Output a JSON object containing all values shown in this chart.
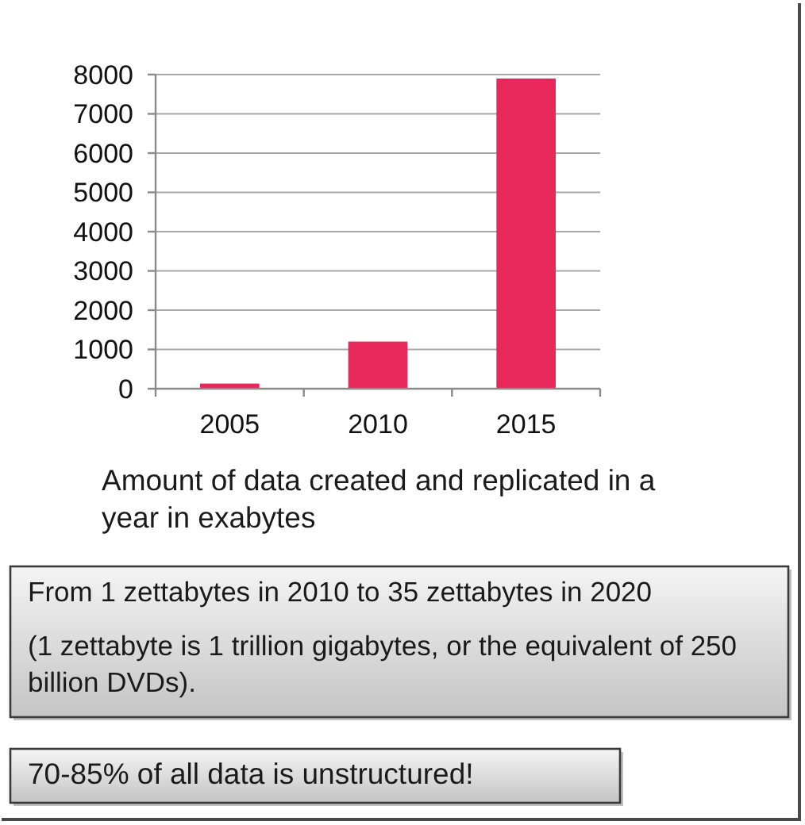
{
  "chart_data": {
    "type": "bar",
    "categories": [
      "2005",
      "2010",
      "2015"
    ],
    "values": [
      130,
      1200,
      7900
    ],
    "color": "#e8285a",
    "ylim": [
      0,
      8000
    ],
    "yticks": [
      0,
      1000,
      2000,
      3000,
      4000,
      5000,
      6000,
      7000,
      8000
    ],
    "grid": "y",
    "annotations": [
      "Amount of data created and replicated in a year in exabytes",
      "From 1 zettabytes in 2010 to 35 zettabytes in 2020",
      "(1 zettabyte is 1 trillion gigabytes, or the equivalent of 250 billion DVDs).",
      "70-85% of all data is unstructured!"
    ]
  }
}
